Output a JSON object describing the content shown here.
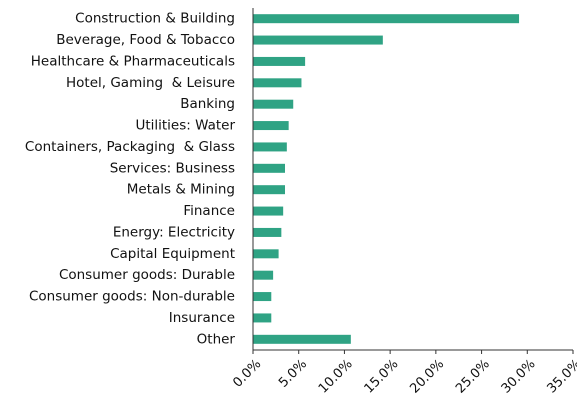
{
  "chart_data": {
    "type": "bar",
    "orientation": "horizontal",
    "categories": [
      "Construction & Building",
      "Beverage, Food & Tobacco",
      "Healthcare & Pharmaceuticals",
      "Hotel, Gaming  & Leisure",
      "Banking",
      "Utilities: Water",
      "Containers, Packaging  & Glass",
      "Services: Business",
      "Metals & Mining",
      "Finance",
      "Energy: Electricity",
      "Capital Equipment",
      "Consumer goods: Durable",
      "Consumer goods: Non-durable",
      "Insurance",
      "Other"
    ],
    "values": [
      29.1,
      14.2,
      5.7,
      5.3,
      4.4,
      3.9,
      3.7,
      3.5,
      3.5,
      3.3,
      3.1,
      2.8,
      2.2,
      2.0,
      2.0,
      10.7
    ],
    "color": "#2fa384",
    "xlim": [
      0,
      35
    ],
    "xticks": [
      {
        "value": 0,
        "label": "0.0%"
      },
      {
        "value": 5,
        "label": "5.0%"
      },
      {
        "value": 10,
        "label": "10.0%"
      },
      {
        "value": 15,
        "label": "15.0%"
      },
      {
        "value": 20,
        "label": "20.0%"
      },
      {
        "value": 25,
        "label": "25.0%"
      },
      {
        "value": 30,
        "label": "30.0%"
      },
      {
        "value": 35,
        "label": "35.0%"
      }
    ]
  }
}
